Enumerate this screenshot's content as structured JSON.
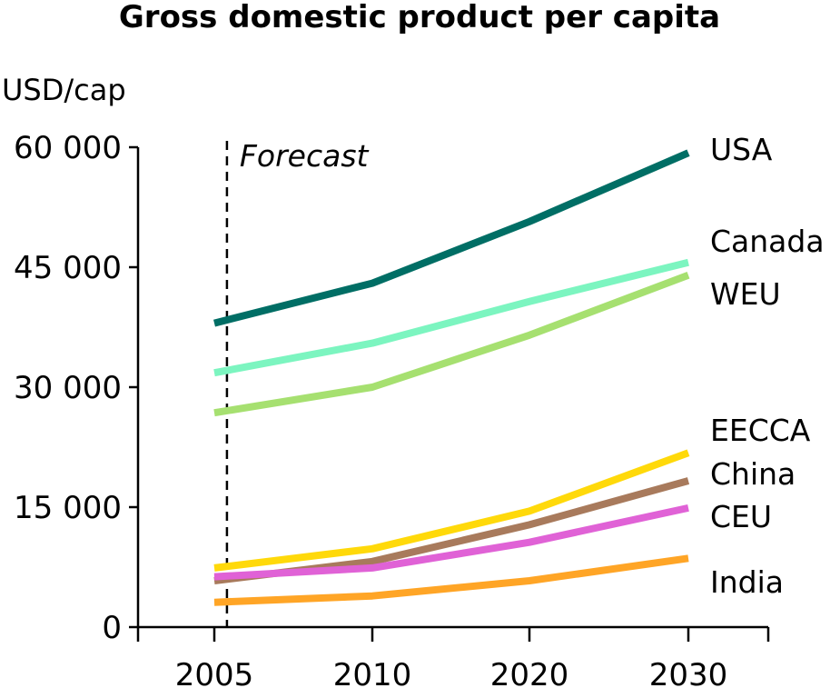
{
  "chart_data": {
    "type": "line",
    "title": "Gross domestic product per capita",
    "ylabel": "USD/cap",
    "xlabel": "",
    "x": [
      2005,
      2010,
      2020,
      2030
    ],
    "x_tick_labels": [
      "2005",
      "2010",
      "2020",
      "2030"
    ],
    "y_ticks": [
      0,
      15000,
      30000,
      45000,
      60000
    ],
    "y_tick_labels": [
      "0",
      "15 000",
      "30 000",
      "45 000",
      "60 000"
    ],
    "ylim": [
      0,
      60000
    ],
    "grid": false,
    "legend": "end-of-line labels",
    "annotation": {
      "text": "Forecast",
      "x": 2005.4
    },
    "series": [
      {
        "name": "USA",
        "color": "#006e65",
        "values": [
          38000,
          43000,
          50700,
          59300
        ]
      },
      {
        "name": "Canada",
        "color": "#7cf5c0",
        "values": [
          31800,
          35500,
          40700,
          45600
        ]
      },
      {
        "name": "WEU",
        "color": "#a6e070",
        "values": [
          26800,
          30000,
          36500,
          44000
        ]
      },
      {
        "name": "EECCA",
        "color": "#ffd90a",
        "values": [
          7400,
          9800,
          14500,
          21800
        ]
      },
      {
        "name": "China",
        "color": "#a87a5c",
        "values": [
          5800,
          8200,
          12800,
          18300
        ]
      },
      {
        "name": "CEU",
        "color": "#e062d6",
        "values": [
          6300,
          7400,
          10600,
          14900
        ]
      },
      {
        "name": "India",
        "color": "#ffa526",
        "values": [
          3100,
          3900,
          5800,
          8600
        ]
      }
    ]
  }
}
